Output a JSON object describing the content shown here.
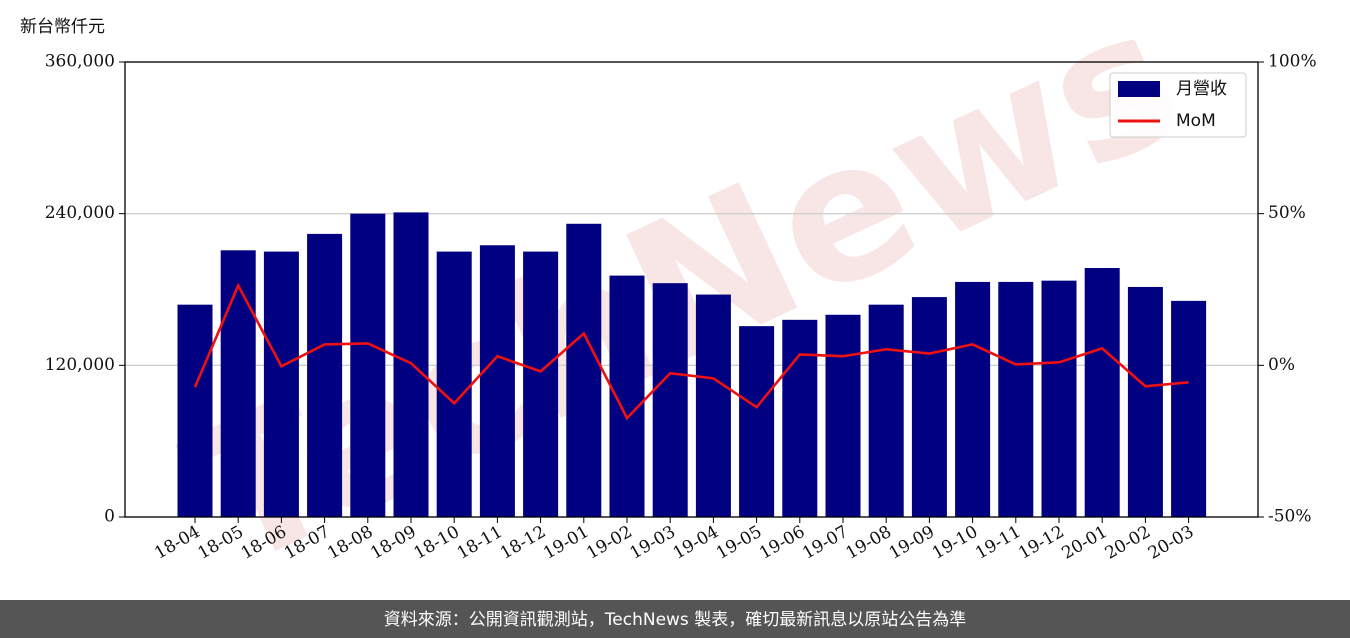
{
  "chart_data": {
    "type": "combo",
    "y_axis_label": "新台幣仟元",
    "watermark": "TechNews",
    "source": "資料來源：公開資訊觀測站，TechNews 製表，確切最新訊息以原站公告為準",
    "categories": [
      "18-04",
      "18-05",
      "18-06",
      "18-07",
      "18-08",
      "18-09",
      "18-10",
      "18-11",
      "18-12",
      "19-01",
      "19-02",
      "19-03",
      "19-04",
      "19-05",
      "19-06",
      "19-07",
      "19-08",
      "19-09",
      "19-10",
      "19-11",
      "19-12",
      "20-01",
      "20-02",
      "20-03"
    ],
    "series": [
      {
        "name": "月營收",
        "type": "bar",
        "color": "#000080",
        "values": [
          168000,
          211000,
          210000,
          224000,
          240000,
          241000,
          210000,
          215000,
          210000,
          232000,
          191000,
          185000,
          176000,
          151000,
          156000,
          160000,
          168000,
          174000,
          186000,
          186000,
          187000,
          197000,
          182000,
          171000
        ]
      },
      {
        "name": "MoM",
        "type": "line",
        "axis": "y2",
        "color": "#ee1111",
        "values": [
          -7.2,
          26.3,
          -0.3,
          6.9,
          7.2,
          0.7,
          -12.5,
          3.0,
          -2.0,
          10.5,
          -17.4,
          -2.6,
          -4.3,
          -13.8,
          3.6,
          3.0,
          5.3,
          3.9,
          6.9,
          0.3,
          1.0,
          5.6,
          -6.9,
          -5.6
        ]
      }
    ],
    "ylim": [
      0,
      360000
    ],
    "yticks": [
      0,
      {
        "value": 120000,
        "label": "120,000"
      },
      {
        "value": 240000,
        "label": "240,000"
      },
      {
        "value": 360000,
        "label": "360,000"
      }
    ],
    "y2lim": [
      -50,
      100
    ],
    "y2ticks": [
      {
        "value": -50,
        "label": "-50%"
      },
      {
        "value": 0,
        "label": "0%"
      },
      {
        "value": 50,
        "label": "50%"
      },
      {
        "value": 100,
        "label": "100%"
      }
    ],
    "grid": true,
    "legend": "upper right"
  }
}
